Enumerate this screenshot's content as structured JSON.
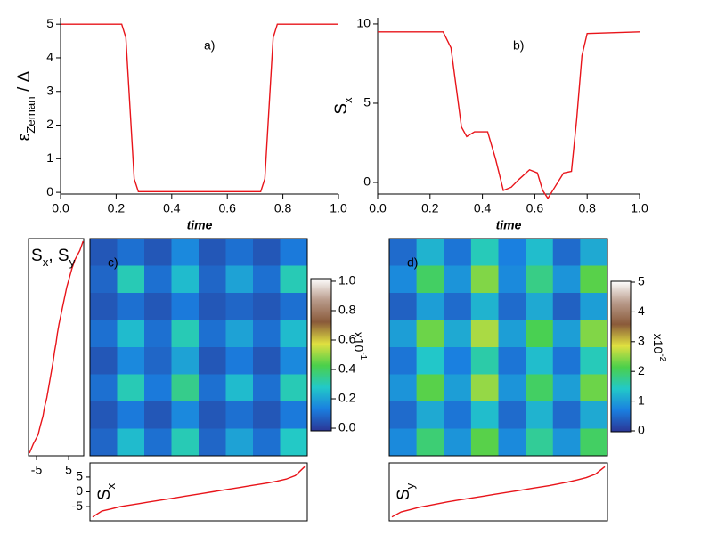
{
  "chart_data": [
    {
      "type": "line",
      "annotation": "a)",
      "xlabel": "time",
      "ylabel": [
        {
          "text": "ε",
          "sub": "Zeman"
        },
        {
          "text": " / Δ",
          "sub": ""
        }
      ],
      "x": [
        0,
        0.22,
        0.235,
        0.25,
        0.265,
        0.28,
        0.72,
        0.735,
        0.75,
        0.765,
        0.78,
        1
      ],
      "series": [
        {
          "color": "#e8141a",
          "values": [
            5,
            5,
            4.6,
            2.5,
            0.4,
            0.02,
            0.02,
            0.4,
            2.5,
            4.6,
            5,
            5
          ]
        }
      ],
      "xlim": [
        0,
        1
      ],
      "ylim": [
        -0.05,
        5.19
      ],
      "xticks": [
        {
          "value": 0,
          "label": "0.0"
        },
        {
          "value": 0.2,
          "label": "0.2"
        },
        {
          "value": 0.4,
          "label": "0.4"
        },
        {
          "value": 0.6,
          "label": "0.6"
        },
        {
          "value": 0.8,
          "label": "0.8"
        },
        {
          "value": 1,
          "label": "1.0"
        }
      ],
      "yticks": [
        0,
        1,
        2,
        3,
        4,
        5
      ]
    },
    {
      "type": "line",
      "annotation": "b)",
      "xlabel": "time",
      "ylabel": [
        {
          "text": "S",
          "sub": "x"
        }
      ],
      "x": [
        0,
        0.25,
        0.28,
        0.3,
        0.32,
        0.34,
        0.37,
        0.42,
        0.45,
        0.48,
        0.51,
        0.54,
        0.58,
        0.61,
        0.63,
        0.65,
        0.68,
        0.71,
        0.74,
        0.76,
        0.78,
        0.8,
        1
      ],
      "series": [
        {
          "color": "#e8141a",
          "values": [
            9.5,
            9.5,
            8.5,
            6,
            3.5,
            2.9,
            3.2,
            3.2,
            1.5,
            -0.5,
            -0.3,
            0.2,
            0.8,
            0.6,
            -0.5,
            -1,
            -0.2,
            0.6,
            0.7,
            4,
            8,
            9.4,
            9.5
          ]
        }
      ],
      "xlim": [
        0,
        1
      ],
      "ylim": [
        -0.73,
        10.39
      ],
      "xticks": [
        {
          "value": 0,
          "label": "0.0"
        },
        {
          "value": 0.2,
          "label": "0.2"
        },
        {
          "value": 0.4,
          "label": "0.4"
        },
        {
          "value": 0.6,
          "label": "0.6"
        },
        {
          "value": 0.8,
          "label": "0.8"
        },
        {
          "value": 1,
          "label": "1.0"
        }
      ],
      "yticks": [
        0,
        5,
        10
      ]
    },
    {
      "type": "heatmap",
      "annotation": "c)",
      "z": [
        [
          0.05,
          0.1,
          0.05,
          0.15,
          0.05,
          0.1,
          0.05,
          0.12
        ],
        [
          0.08,
          0.3,
          0.1,
          0.25,
          0.08,
          0.2,
          0.1,
          0.3
        ],
        [
          0.05,
          0.1,
          0.05,
          0.12,
          0.05,
          0.08,
          0.05,
          0.1
        ],
        [
          0.1,
          0.25,
          0.1,
          0.3,
          0.1,
          0.2,
          0.1,
          0.25
        ],
        [
          0.05,
          0.15,
          0.08,
          0.2,
          0.05,
          0.12,
          0.05,
          0.15
        ],
        [
          0.1,
          0.3,
          0.12,
          0.35,
          0.1,
          0.25,
          0.1,
          0.3
        ],
        [
          0.05,
          0.12,
          0.05,
          0.15,
          0.05,
          0.1,
          0.05,
          0.12
        ],
        [
          0.08,
          0.25,
          0.1,
          0.3,
          0.08,
          0.2,
          0.1,
          0.28
        ]
      ],
      "colormap": [
        "#2b3595",
        "#1a7fe0",
        "#22c9c8",
        "#4bd04b",
        "#e0e040",
        "#8a5a3a",
        "#b89a8a",
        "#ffffff"
      ],
      "zlim": [
        -0.018,
        1.018
      ],
      "zticks": [
        {
          "value": 0,
          "label": "0.0"
        },
        {
          "value": 0.2,
          "label": "0.2"
        },
        {
          "value": 0.4,
          "label": "0.4"
        },
        {
          "value": 0.6,
          "label": "0.6"
        },
        {
          "value": 0.8,
          "label": "0.8"
        },
        {
          "value": 1,
          "label": "1.0"
        }
      ],
      "multiplier": {
        "text": "x10",
        "sup": "-1"
      }
    },
    {
      "type": "line",
      "orientation": "vertical",
      "label": [
        {
          "text": "S",
          "sub": "x"
        },
        {
          "text": ", S",
          "sub": "y"
        }
      ],
      "series": [
        {
          "color": "#e8141a",
          "values": [
            -7.2,
            -6,
            -4.5,
            -3.8,
            -3,
            -2.5,
            -1.8,
            -1.3,
            -0.8,
            -0.3,
            0.2,
            0.6,
            1.1,
            1.5,
            2,
            2.6,
            3.2,
            3.8,
            4.4,
            5.2,
            6,
            7,
            8.5,
            9.5
          ]
        }
      ],
      "xlim": [
        -7.5,
        9.7
      ],
      "xticks": [
        -5,
        5
      ]
    },
    {
      "type": "line",
      "label": [
        {
          "text": "S",
          "sub": "x"
        }
      ],
      "series": [
        {
          "color": "#e8141a",
          "values": [
            -8.5,
            -6.5,
            -5.8,
            -5,
            -4.5,
            -4,
            -3.5,
            -3,
            -2.5,
            -2,
            -1.5,
            -1,
            -0.5,
            0,
            0.5,
            1,
            1.5,
            2,
            2.5,
            3,
            3.6,
            4.3,
            5.5,
            8.5
          ]
        }
      ],
      "ylim": [
        -9.8,
        9.8
      ],
      "yticks": [
        -5,
        0,
        5
      ]
    },
    {
      "type": "heatmap",
      "annotation": "d)",
      "z": [
        [
          0.5,
          1.2,
          0.6,
          1.5,
          0.7,
          1.3,
          0.5,
          1.1
        ],
        [
          0.8,
          2,
          0.9,
          2.4,
          0.8,
          1.8,
          0.9,
          2.2
        ],
        [
          0.4,
          1,
          0.5,
          1.2,
          0.5,
          1.1,
          0.4,
          1
        ],
        [
          1,
          2.3,
          1.1,
          2.6,
          1,
          2.1,
          1,
          2.4
        ],
        [
          0.6,
          1.4,
          0.7,
          1.6,
          0.6,
          1.3,
          0.6,
          1.5
        ],
        [
          0.9,
          2.2,
          1,
          2.5,
          0.9,
          2,
          1,
          2.3
        ],
        [
          0.5,
          1.1,
          0.6,
          1.3,
          0.5,
          1.2,
          0.5,
          1.1
        ],
        [
          0.8,
          1.9,
          0.9,
          2.2,
          0.8,
          1.7,
          0.9,
          2
        ]
      ],
      "colormap": [
        "#2b3595",
        "#1a7fe0",
        "#22c9c8",
        "#4bd04b",
        "#e0e040",
        "#8a5a3a",
        "#b89a8a",
        "#ffffff"
      ],
      "zlim": [
        -0.03,
        5.03
      ],
      "zticks": [
        0,
        1,
        2,
        3,
        4,
        5
      ],
      "multiplier": {
        "text": "x10",
        "sup": "-2"
      }
    },
    {
      "type": "line",
      "label": [
        {
          "text": "S",
          "sub": "y"
        }
      ],
      "series": [
        {
          "color": "#e8141a",
          "values": [
            -8.5,
            -6.8,
            -6,
            -5.2,
            -4.6,
            -4,
            -3.4,
            -2.9,
            -2.4,
            -1.9,
            -1.4,
            -0.9,
            -0.4,
            0.1,
            0.6,
            1.1,
            1.6,
            2.1,
            2.7,
            3.3,
            4,
            4.8,
            6,
            8.5
          ]
        }
      ],
      "ylim": [
        -9.8,
        9.8
      ]
    }
  ]
}
